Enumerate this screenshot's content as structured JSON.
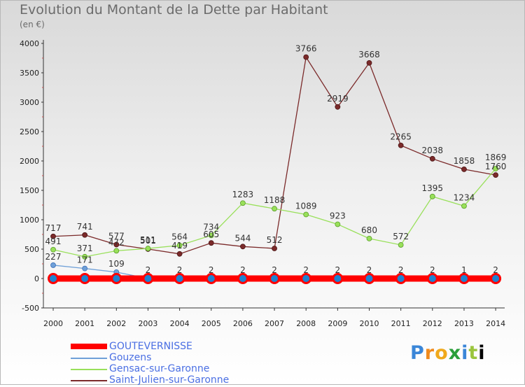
{
  "title": "Evolution du Montant de la Dette par Habitant",
  "unit": "(en €)",
  "logo_text": "Proxiti",
  "chart_data": {
    "type": "line",
    "categories": [
      "2000",
      "2001",
      "2002",
      "2003",
      "2004",
      "2005",
      "2006",
      "2007",
      "2008",
      "2009",
      "2010",
      "2011",
      "2012",
      "2013",
      "2014"
    ],
    "ylim": [
      -500,
      4000
    ],
    "yticks": [
      -500,
      0,
      500,
      1000,
      1500,
      2000,
      2500,
      3000,
      3500,
      4000
    ],
    "grid": false,
    "legend_position": "bottom-left",
    "series": [
      {
        "name": "GOUTEVERNISSE",
        "color": "#ff0000",
        "values": [
          0,
          0,
          0,
          0,
          0,
          0,
          0,
          0,
          0,
          0,
          0,
          0,
          0,
          0,
          0
        ],
        "labels": [
          "",
          "",
          "",
          "",
          "",
          "",
          "",
          "",
          "",
          "",
          "",
          "",
          "",
          "",
          ""
        ]
      },
      {
        "name": "Gouzens",
        "color": "#6fa0d8",
        "values": [
          227,
          171,
          109,
          2,
          2,
          2,
          2,
          2,
          2,
          2,
          2,
          2,
          2,
          1,
          2
        ],
        "labels": [
          "227",
          "171",
          "109",
          "2",
          "2",
          "2",
          "2",
          "2",
          "2",
          "2",
          "2",
          "2",
          "2",
          "1",
          "2"
        ]
      },
      {
        "name": "Gensac-sur-Garonne",
        "color": "#99e05a",
        "values": [
          491,
          371,
          472,
          511,
          564,
          734,
          1283,
          1188,
          1089,
          923,
          680,
          572,
          1395,
          1234,
          1869
        ],
        "labels": [
          "491",
          "371",
          "472",
          "511",
          "564",
          "734",
          "1283",
          "1188",
          "1089",
          "923",
          "680",
          "572",
          "1395",
          "1234",
          "1869"
        ]
      },
      {
        "name": "Saint-Julien-sur-Garonne",
        "color": "#7b2a2a",
        "values": [
          717,
          741,
          577,
          501,
          419,
          605,
          544,
          512,
          3766,
          2919,
          3668,
          2265,
          2038,
          1858,
          1760
        ],
        "labels": [
          "717",
          "741",
          "577",
          "501",
          "419",
          "605",
          "544",
          "512",
          "3766",
          "2919",
          "3668",
          "2265",
          "2038",
          "1858",
          "1760"
        ]
      }
    ]
  }
}
